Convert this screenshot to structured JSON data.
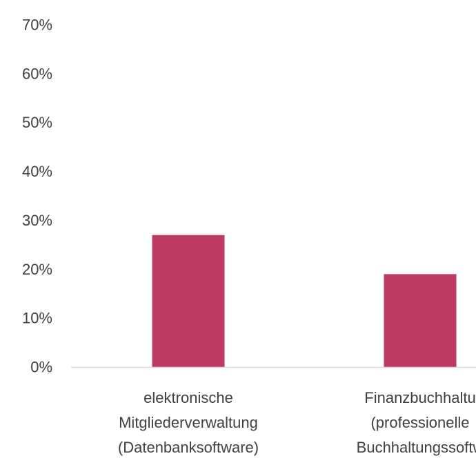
{
  "chart_data": {
    "type": "bar",
    "title": "",
    "xlabel": "",
    "ylabel": "",
    "categories": [
      [
        "elektronische",
        "Mitgliederverwaltung",
        "(Datenbanksoftware)"
      ],
      [
        "Finanzbuchhaltu",
        "(professionelle",
        "Buchhaltungssoftw"
      ]
    ],
    "values": [
      27,
      19
    ],
    "ylim": [
      0,
      70
    ],
    "yticks": [
      0,
      10,
      20,
      30,
      40,
      50,
      60,
      70
    ],
    "ytick_labels": [
      "0%",
      "10%",
      "20%",
      "30%",
      "40%",
      "50%",
      "60%",
      "70%"
    ],
    "grid": false,
    "legend": "none",
    "bar_color": "#BE3B63",
    "axis_color": "#D9D9D9"
  }
}
